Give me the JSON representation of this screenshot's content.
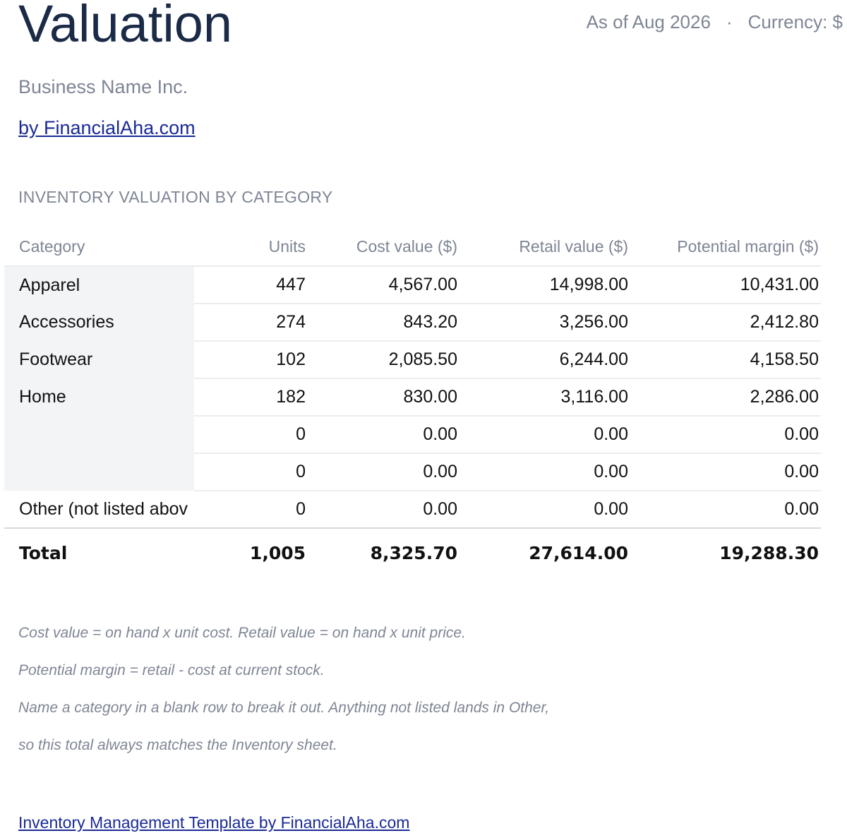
{
  "header": {
    "title": "Valuation",
    "as_of": "As of Aug 2026",
    "separator": "·",
    "currency": "Currency: $"
  },
  "business_name": "Business Name Inc.",
  "byline": "by FinancialAha.com",
  "section_title": "INVENTORY VALUATION BY CATEGORY",
  "table": {
    "columns": [
      "Category",
      "Units",
      "Cost value ($)",
      "Retail value ($)",
      "Potential margin ($)"
    ],
    "rows": [
      [
        "Apparel",
        "447",
        "4,567.00",
        "14,998.00",
        "10,431.00"
      ],
      [
        "Accessories",
        "274",
        "843.20",
        "3,256.00",
        "2,412.80"
      ],
      [
        "Footwear",
        "102",
        "2,085.50",
        "6,244.00",
        "4,158.50"
      ],
      [
        "Home",
        "182",
        "830.00",
        "3,116.00",
        "2,286.00"
      ],
      [
        "",
        "0",
        "0.00",
        "0.00",
        "0.00"
      ],
      [
        "",
        "0",
        "0.00",
        "0.00",
        "0.00"
      ],
      [
        "Other (not listed abov",
        "0",
        "0.00",
        "0.00",
        "0.00"
      ]
    ],
    "total": [
      "Total",
      "1,005",
      "8,325.70",
      "27,614.00",
      "19,288.30"
    ]
  },
  "notes": [
    "Cost value = on hand x unit cost. Retail value = on hand x unit price.",
    "Potential margin = retail - cost at current stock.",
    "Name a category in a blank row to break it out. Anything not listed lands in Other,",
    "so this total always matches the Inventory sheet."
  ],
  "footer_link": "Inventory Management Template by FinancialAha.com"
}
